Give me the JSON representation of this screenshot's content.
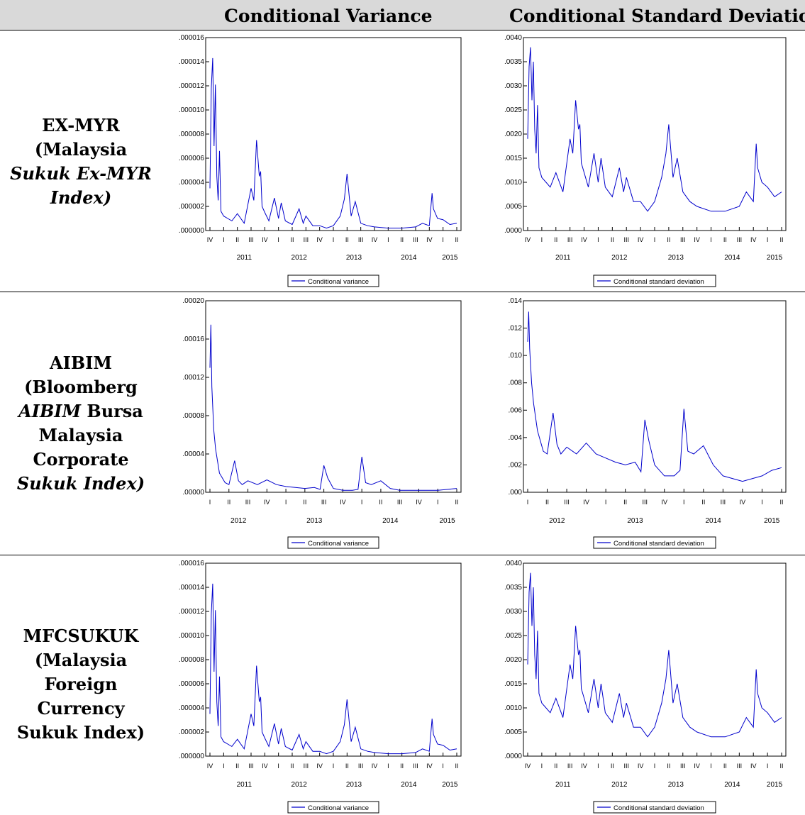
{
  "header": {
    "col1": "Conditional Variance",
    "col2": "Conditional Standard Deviation"
  },
  "rows": [
    {
      "label_lines": [
        {
          "parts": [
            {
              "text": "EX-MYR",
              "italic": false
            }
          ]
        },
        {
          "parts": [
            {
              "text": "(Malaysia",
              "italic": false
            }
          ]
        },
        {
          "parts": [
            {
              "text": "Sukuk Ex-MYR",
              "italic": true
            }
          ]
        },
        {
          "parts": [
            {
              "text": "Index)",
              "italic": true
            }
          ]
        }
      ]
    },
    {
      "label_lines": [
        {
          "parts": [
            {
              "text": "AIBIM",
              "italic": false
            }
          ]
        },
        {
          "parts": [
            {
              "text": "(Bloomberg",
              "italic": false
            }
          ]
        },
        {
          "parts": [
            {
              "text": "AIBIM",
              "italic": true
            },
            {
              "text": " Bursa",
              "italic": false
            }
          ]
        },
        {
          "parts": [
            {
              "text": "Malaysia",
              "italic": false
            }
          ]
        },
        {
          "parts": [
            {
              "text": "Corporate",
              "italic": false
            }
          ]
        },
        {
          "parts": [
            {
              "text": "Sukuk Index)",
              "italic": true
            }
          ]
        }
      ]
    },
    {
      "label_lines": [
        {
          "parts": [
            {
              "text": "MFCSUKUK",
              "italic": false
            }
          ]
        },
        {
          "parts": [
            {
              "text": "(Malaysia",
              "italic": false
            }
          ]
        },
        {
          "parts": [
            {
              "text": "Foreign",
              "italic": false
            }
          ]
        },
        {
          "parts": [
            {
              "text": "Currency",
              "italic": false
            }
          ]
        },
        {
          "parts": [
            {
              "text": "Sukuk Index)",
              "italic": false
            }
          ]
        }
      ]
    }
  ],
  "colors": {
    "line": "#0000cc",
    "header_bg": "#d9d9d9"
  },
  "chart_data": [
    {
      "type": "line",
      "legend": "Conditional variance",
      "yticks": [
        ".000000",
        ".000002",
        ".000004",
        ".000006",
        ".000008",
        ".000010",
        ".000012",
        ".000014",
        ".000016"
      ],
      "ylim": [
        0,
        1.6e-05
      ],
      "quarters": [
        "IV",
        "I",
        "II",
        "III",
        "IV",
        "I",
        "II",
        "III",
        "IV",
        "I",
        "II",
        "III",
        "IV",
        "I",
        "II",
        "III",
        "IV",
        "I",
        "II"
      ],
      "years": [
        {
          "label": "2011",
          "q": 2.5
        },
        {
          "label": "2012",
          "q": 6.5
        },
        {
          "label": "2013",
          "q": 10.5
        },
        {
          "label": "2014",
          "q": 14.5
        },
        {
          "label": "2015",
          "q": 17.5
        }
      ],
      "x": [
        0,
        0.1,
        0.2,
        0.3,
        0.4,
        0.5,
        0.6,
        0.7,
        0.8,
        1.0,
        1.3,
        1.6,
        2.0,
        2.5,
        3.0,
        3.2,
        3.4,
        3.6,
        3.7,
        3.8,
        4.0,
        4.3,
        4.7,
        5.0,
        5.2,
        5.5,
        6.0,
        6.5,
        6.8,
        7.0,
        7.5,
        8.0,
        8.5,
        9.0,
        9.5,
        9.8,
        10.0,
        10.3,
        10.6,
        11.0,
        11.5,
        12.0,
        13.0,
        14.0,
        15.0,
        15.5,
        16.0,
        16.2,
        16.3,
        16.6,
        17.0,
        17.5,
        18.0
      ],
      "values": [
        3.5e-06,
        1.18e-05,
        1.43e-05,
        7e-06,
        1.21e-05,
        4.5e-06,
        2.5e-06,
        6.6e-06,
        1.6e-06,
        1.2e-06,
        1e-06,
        8e-07,
        1.4e-06,
        6e-07,
        3.5e-06,
        2.5e-06,
        7.5e-06,
        4.5e-06,
        4.9e-06,
        2e-06,
        1.5e-06,
        8e-07,
        2.7e-06,
        1e-06,
        2.3e-06,
        8e-07,
        5e-07,
        1.8e-06,
        6e-07,
        1.2e-06,
        4e-07,
        4e-07,
        2e-07,
        4e-07,
        1.2e-06,
        2.6e-06,
        4.7e-06,
        1.2e-06,
        2.4e-06,
        6e-07,
        4e-07,
        3e-07,
        2e-07,
        2e-07,
        3e-07,
        6e-07,
        4e-07,
        3.1e-06,
        1.8e-06,
        1e-06,
        9e-07,
        5e-07,
        6e-07
      ]
    },
    {
      "type": "line",
      "legend": "Conditional standard deviation",
      "yticks": [
        ".0000",
        ".0005",
        ".0010",
        ".0015",
        ".0020",
        ".0025",
        ".0030",
        ".0035",
        ".0040"
      ],
      "ylim": [
        0,
        0.004
      ],
      "quarters": [
        "IV",
        "I",
        "II",
        "III",
        "IV",
        "I",
        "II",
        "III",
        "IV",
        "I",
        "II",
        "III",
        "IV",
        "I",
        "II",
        "III",
        "IV",
        "I",
        "II"
      ],
      "years": [
        {
          "label": "2011",
          "q": 2.5
        },
        {
          "label": "2012",
          "q": 6.5
        },
        {
          "label": "2013",
          "q": 10.5
        },
        {
          "label": "2014",
          "q": 14.5
        },
        {
          "label": "2015",
          "q": 17.5
        }
      ],
      "x": [
        0,
        0.1,
        0.2,
        0.3,
        0.4,
        0.5,
        0.6,
        0.7,
        0.8,
        1.0,
        1.3,
        1.6,
        2.0,
        2.5,
        3.0,
        3.2,
        3.4,
        3.6,
        3.7,
        3.8,
        4.0,
        4.3,
        4.7,
        5.0,
        5.2,
        5.5,
        6.0,
        6.5,
        6.8,
        7.0,
        7.5,
        8.0,
        8.5,
        9.0,
        9.5,
        9.8,
        10.0,
        10.3,
        10.6,
        11.0,
        11.5,
        12.0,
        13.0,
        14.0,
        15.0,
        15.5,
        16.0,
        16.2,
        16.3,
        16.6,
        17.0,
        17.5,
        18.0
      ],
      "values": [
        0.0019,
        0.0034,
        0.0038,
        0.0027,
        0.0035,
        0.0021,
        0.0016,
        0.0026,
        0.0013,
        0.0011,
        0.001,
        0.0009,
        0.0012,
        0.0008,
        0.0019,
        0.0016,
        0.0027,
        0.0021,
        0.0022,
        0.0014,
        0.0012,
        0.0009,
        0.0016,
        0.001,
        0.0015,
        0.0009,
        0.0007,
        0.0013,
        0.0008,
        0.0011,
        0.0006,
        0.0006,
        0.0004,
        0.0006,
        0.0011,
        0.0016,
        0.0022,
        0.0011,
        0.0015,
        0.0008,
        0.0006,
        0.0005,
        0.0004,
        0.0004,
        0.0005,
        0.0008,
        0.0006,
        0.0018,
        0.0013,
        0.001,
        0.0009,
        0.0007,
        0.0008
      ]
    },
    {
      "type": "line",
      "legend": "Conditional variance",
      "yticks": [
        ".00000",
        ".00004",
        ".00008",
        ".00012",
        ".00016",
        ".00020"
      ],
      "ylim": [
        0,
        0.0002
      ],
      "quarters": [
        "I",
        "II",
        "III",
        "IV",
        "I",
        "II",
        "III",
        "IV",
        "I",
        "II",
        "III",
        "IV",
        "I",
        "II"
      ],
      "years": [
        {
          "label": "2012",
          "q": 1.5
        },
        {
          "label": "2013",
          "q": 5.5
        },
        {
          "label": "2014",
          "q": 9.5
        },
        {
          "label": "2015",
          "q": 12.5
        }
      ],
      "x": [
        0,
        0.05,
        0.1,
        0.2,
        0.3,
        0.5,
        0.8,
        1.0,
        1.3,
        1.5,
        1.7,
        2.0,
        2.5,
        3.0,
        3.5,
        4.0,
        4.5,
        5.0,
        5.5,
        5.8,
        6.0,
        6.2,
        6.5,
        7.0,
        7.5,
        7.8,
        8.0,
        8.2,
        8.5,
        9.0,
        9.5,
        10.0,
        11.0,
        12.0,
        12.5,
        13.0
      ],
      "values": [
        0.00013,
        0.000175,
        0.00011,
        6.5e-05,
        4.5e-05,
        2e-05,
        1e-05,
        8e-06,
        3.3e-05,
        1.2e-05,
        8e-06,
        1.2e-05,
        8e-06,
        1.3e-05,
        8e-06,
        6e-06,
        5e-06,
        4e-06,
        5e-06,
        3e-06,
        2.8e-05,
        1.5e-05,
        4e-06,
        2e-06,
        2e-06,
        3e-06,
        3.7e-05,
        1e-05,
        8e-06,
        1.2e-05,
        4e-06,
        2e-06,
        2e-06,
        2e-06,
        3e-06,
        4e-06
      ]
    },
    {
      "type": "line",
      "legend": "Conditional standard deviation",
      "yticks": [
        ".000",
        ".002",
        ".004",
        ".006",
        ".008",
        ".010",
        ".012",
        ".014"
      ],
      "ylim": [
        0,
        0.014
      ],
      "quarters": [
        "I",
        "II",
        "III",
        "IV",
        "I",
        "II",
        "III",
        "IV",
        "I",
        "II",
        "III",
        "IV",
        "I",
        "II"
      ],
      "years": [
        {
          "label": "2012",
          "q": 1.5
        },
        {
          "label": "2013",
          "q": 5.5
        },
        {
          "label": "2014",
          "q": 9.5
        },
        {
          "label": "2015",
          "q": 12.5
        }
      ],
      "x": [
        0,
        0.05,
        0.1,
        0.2,
        0.3,
        0.5,
        0.8,
        1.0,
        1.3,
        1.5,
        1.7,
        2.0,
        2.5,
        3.0,
        3.5,
        4.0,
        4.5,
        5.0,
        5.5,
        5.8,
        6.0,
        6.2,
        6.5,
        7.0,
        7.5,
        7.8,
        8.0,
        8.2,
        8.5,
        9.0,
        9.5,
        10.0,
        11.0,
        12.0,
        12.5,
        13.0
      ],
      "values": [
        0.011,
        0.0132,
        0.0105,
        0.008,
        0.0065,
        0.0045,
        0.003,
        0.0028,
        0.0058,
        0.0035,
        0.0028,
        0.0033,
        0.0028,
        0.0036,
        0.0028,
        0.0025,
        0.0022,
        0.002,
        0.0022,
        0.0015,
        0.0053,
        0.0038,
        0.002,
        0.0012,
        0.0012,
        0.0016,
        0.0061,
        0.003,
        0.0028,
        0.0034,
        0.002,
        0.0012,
        0.0008,
        0.0012,
        0.0016,
        0.0018
      ]
    },
    {
      "type": "line",
      "legend": "Conditional variance",
      "yticks": [
        ".000000",
        ".000002",
        ".000004",
        ".000006",
        ".000008",
        ".000010",
        ".000012",
        ".000014",
        ".000016"
      ],
      "ylim": [
        0,
        1.6e-05
      ],
      "quarters": [
        "IV",
        "I",
        "II",
        "III",
        "IV",
        "I",
        "II",
        "III",
        "IV",
        "I",
        "II",
        "III",
        "IV",
        "I",
        "II",
        "III",
        "IV",
        "I",
        "II"
      ],
      "years": [
        {
          "label": "2011",
          "q": 2.5
        },
        {
          "label": "2012",
          "q": 6.5
        },
        {
          "label": "2013",
          "q": 10.5
        },
        {
          "label": "2014",
          "q": 14.5
        },
        {
          "label": "2015",
          "q": 17.5
        }
      ],
      "x": [
        0,
        0.1,
        0.2,
        0.3,
        0.4,
        0.5,
        0.6,
        0.7,
        0.8,
        1.0,
        1.3,
        1.6,
        2.0,
        2.5,
        3.0,
        3.2,
        3.4,
        3.6,
        3.7,
        3.8,
        4.0,
        4.3,
        4.7,
        5.0,
        5.2,
        5.5,
        6.0,
        6.5,
        6.8,
        7.0,
        7.5,
        8.0,
        8.5,
        9.0,
        9.5,
        9.8,
        10.0,
        10.3,
        10.6,
        11.0,
        11.5,
        12.0,
        13.0,
        14.0,
        15.0,
        15.5,
        16.0,
        16.2,
        16.3,
        16.6,
        17.0,
        17.5,
        18.0
      ],
      "values": [
        3.5e-06,
        1.18e-05,
        1.43e-05,
        7e-06,
        1.21e-05,
        4.5e-06,
        2.5e-06,
        6.6e-06,
        1.6e-06,
        1.2e-06,
        1e-06,
        8e-07,
        1.4e-06,
        6e-07,
        3.5e-06,
        2.5e-06,
        7.5e-06,
        4.5e-06,
        4.9e-06,
        2e-06,
        1.5e-06,
        8e-07,
        2.7e-06,
        1e-06,
        2.3e-06,
        8e-07,
        5e-07,
        1.8e-06,
        6e-07,
        1.2e-06,
        4e-07,
        4e-07,
        2e-07,
        4e-07,
        1.2e-06,
        2.6e-06,
        4.7e-06,
        1.2e-06,
        2.4e-06,
        6e-07,
        4e-07,
        3e-07,
        2e-07,
        2e-07,
        3e-07,
        6e-07,
        4e-07,
        3.1e-06,
        1.8e-06,
        1e-06,
        9e-07,
        5e-07,
        6e-07
      ]
    },
    {
      "type": "line",
      "legend": "Conditional standard deviation",
      "yticks": [
        ".0000",
        ".0005",
        ".0010",
        ".0015",
        ".0020",
        ".0025",
        ".0030",
        ".0035",
        ".0040"
      ],
      "ylim": [
        0,
        0.004
      ],
      "quarters": [
        "IV",
        "I",
        "II",
        "III",
        "IV",
        "I",
        "II",
        "III",
        "IV",
        "I",
        "II",
        "III",
        "IV",
        "I",
        "II",
        "III",
        "IV",
        "I",
        "II"
      ],
      "years": [
        {
          "label": "2011",
          "q": 2.5
        },
        {
          "label": "2012",
          "q": 6.5
        },
        {
          "label": "2013",
          "q": 10.5
        },
        {
          "label": "2014",
          "q": 14.5
        },
        {
          "label": "2015",
          "q": 17.5
        }
      ],
      "x": [
        0,
        0.1,
        0.2,
        0.3,
        0.4,
        0.5,
        0.6,
        0.7,
        0.8,
        1.0,
        1.3,
        1.6,
        2.0,
        2.5,
        3.0,
        3.2,
        3.4,
        3.6,
        3.7,
        3.8,
        4.0,
        4.3,
        4.7,
        5.0,
        5.2,
        5.5,
        6.0,
        6.5,
        6.8,
        7.0,
        7.5,
        8.0,
        8.5,
        9.0,
        9.5,
        9.8,
        10.0,
        10.3,
        10.6,
        11.0,
        11.5,
        12.0,
        13.0,
        14.0,
        15.0,
        15.5,
        16.0,
        16.2,
        16.3,
        16.6,
        17.0,
        17.5,
        18.0
      ],
      "values": [
        0.0019,
        0.0034,
        0.0038,
        0.0027,
        0.0035,
        0.0021,
        0.0016,
        0.0026,
        0.0013,
        0.0011,
        0.001,
        0.0009,
        0.0012,
        0.0008,
        0.0019,
        0.0016,
        0.0027,
        0.0021,
        0.0022,
        0.0014,
        0.0012,
        0.0009,
        0.0016,
        0.001,
        0.0015,
        0.0009,
        0.0007,
        0.0013,
        0.0008,
        0.0011,
        0.0006,
        0.0006,
        0.0004,
        0.0006,
        0.0011,
        0.0016,
        0.0022,
        0.0011,
        0.0015,
        0.0008,
        0.0006,
        0.0005,
        0.0004,
        0.0004,
        0.0005,
        0.0008,
        0.0006,
        0.0018,
        0.0013,
        0.001,
        0.0009,
        0.0007,
        0.0008
      ]
    }
  ]
}
